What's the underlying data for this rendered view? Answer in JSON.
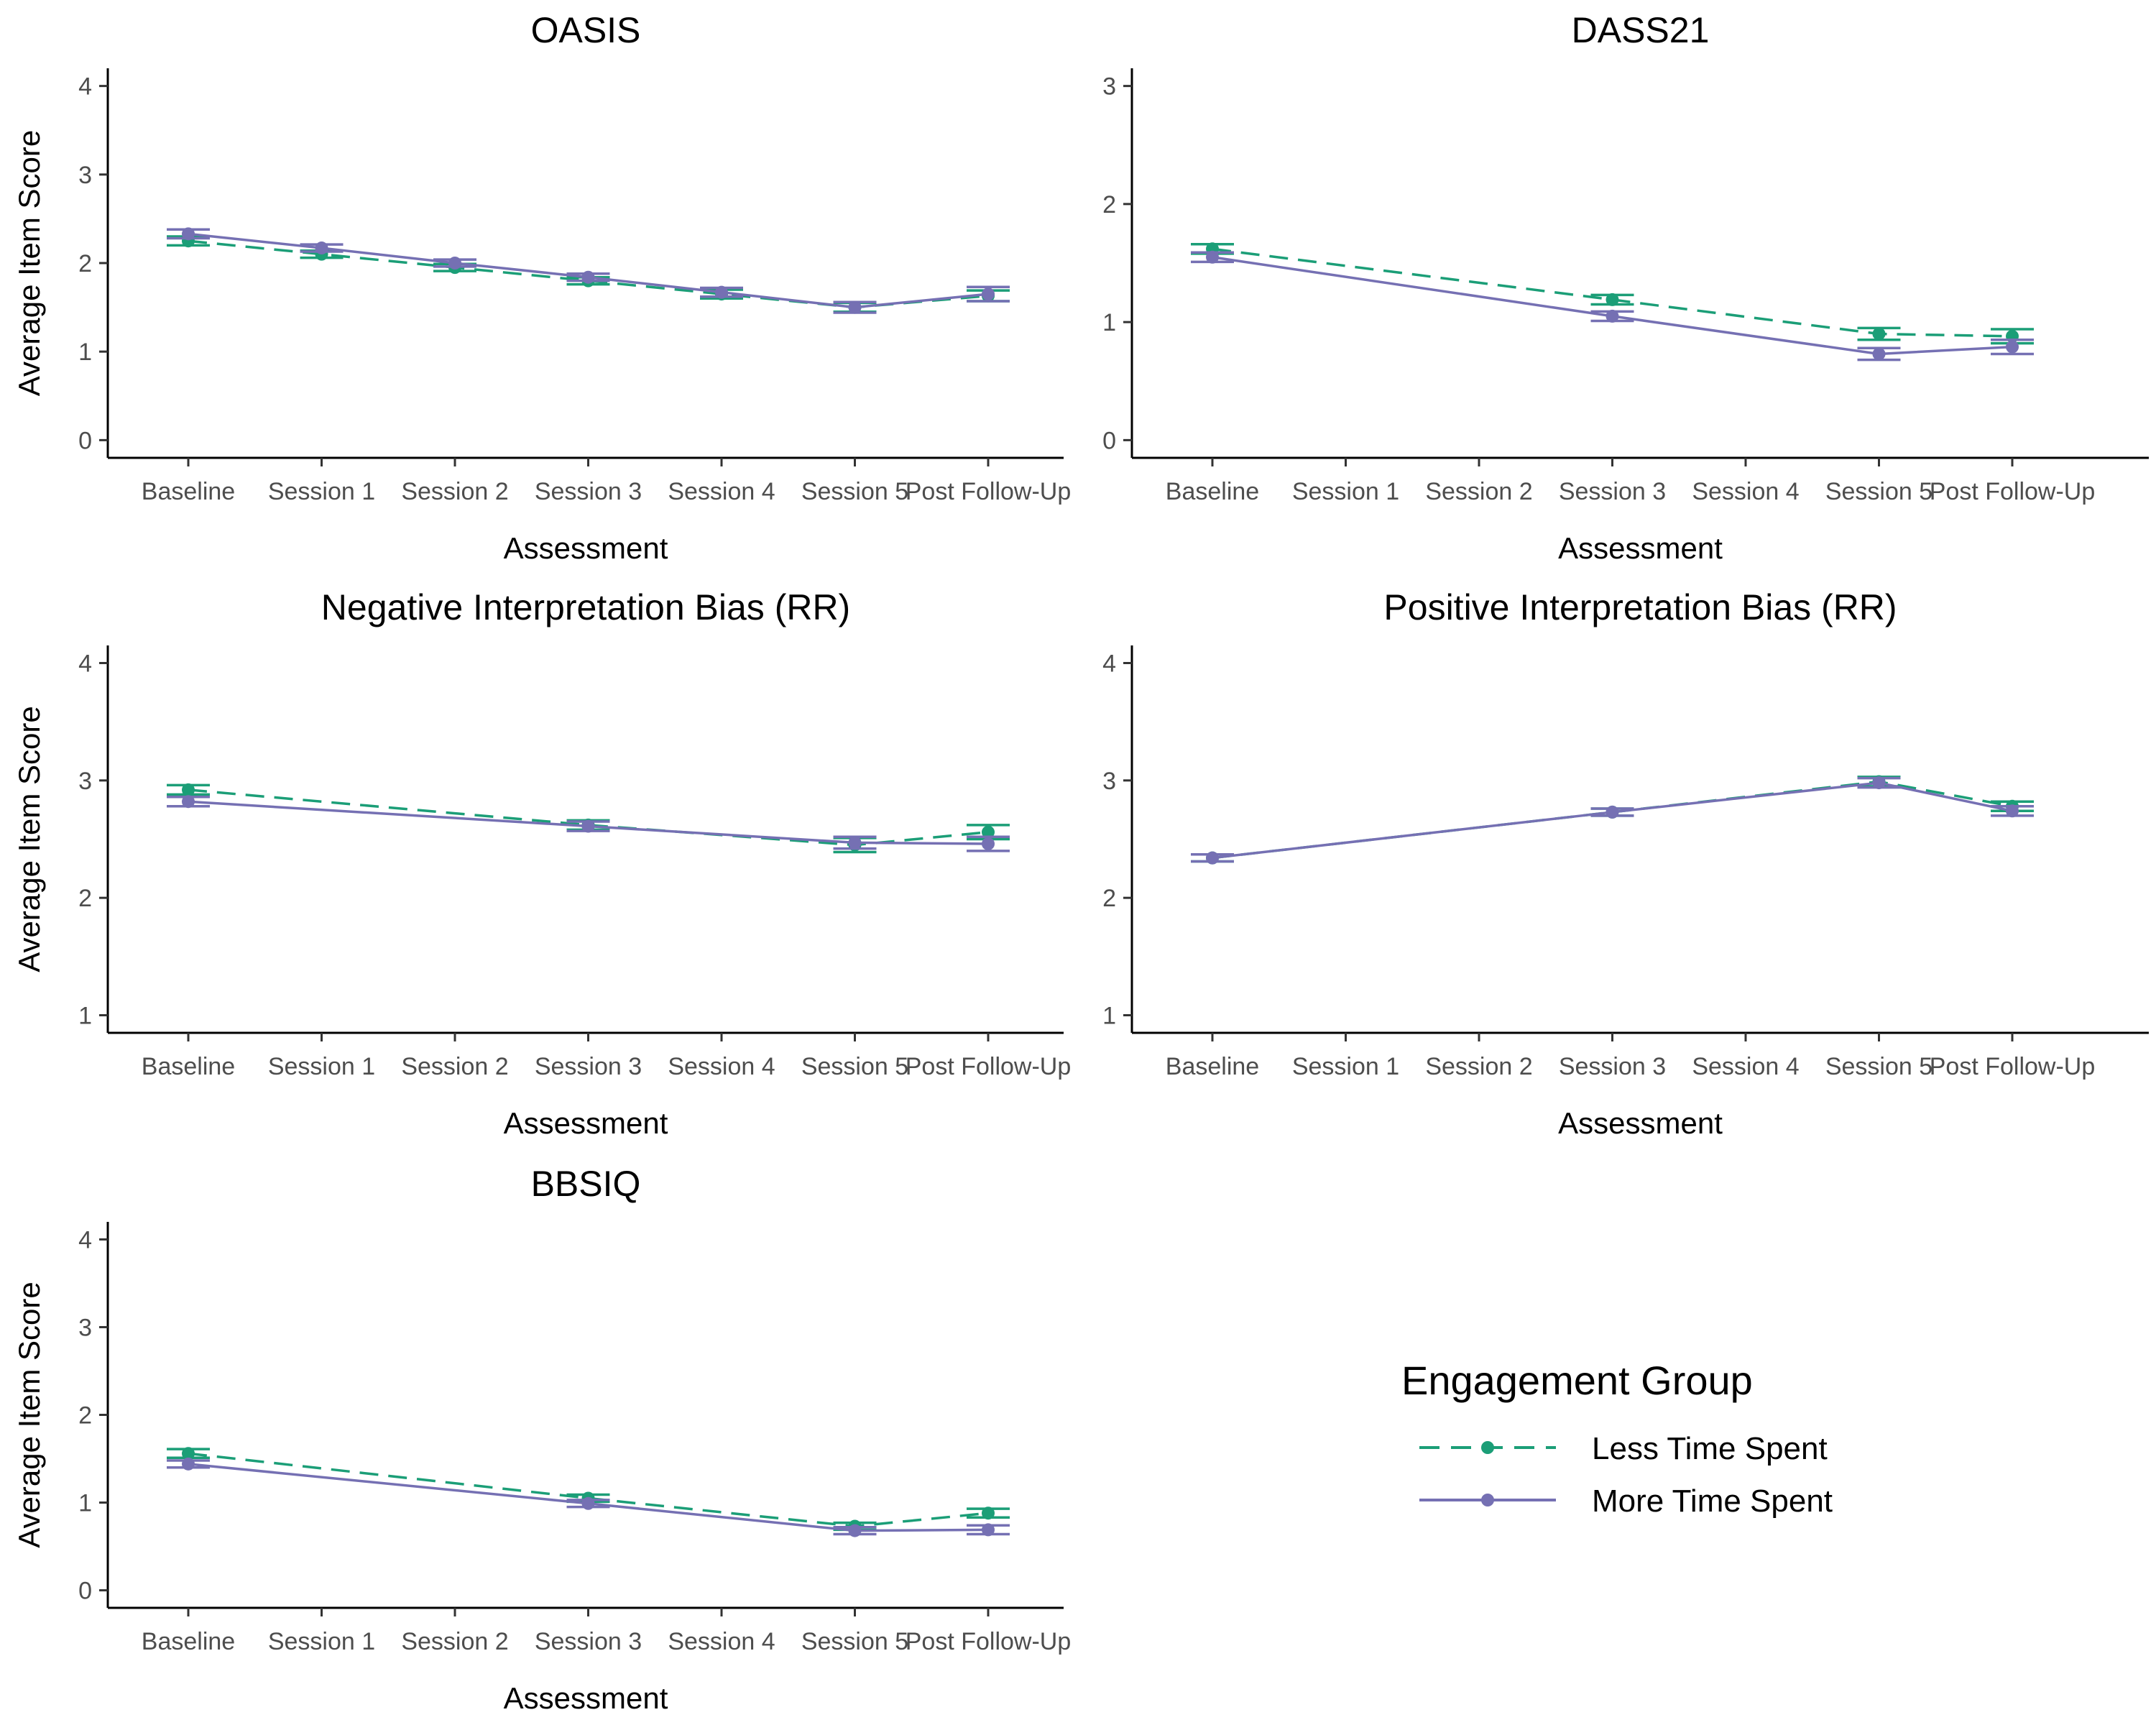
{
  "chart_data": [
    {
      "type": "line",
      "title": "OASIS",
      "xlabel": "Assessment",
      "ylabel": "Average Item Score",
      "categories": [
        "Baseline",
        "Session 1",
        "Session 2",
        "Session 3",
        "Session 4",
        "Session 5",
        "Post Follow-Up"
      ],
      "ylim": [
        -0.2,
        4.2
      ],
      "yticks": [
        0,
        1,
        2,
        3,
        4
      ],
      "series": [
        {
          "name": "Less Time Spent",
          "values": [
            2.25,
            2.1,
            1.95,
            1.8,
            1.65,
            1.5,
            1.63
          ],
          "error": [
            0.05,
            0.04,
            0.04,
            0.04,
            0.05,
            0.05,
            0.06
          ]
        },
        {
          "name": "More Time Spent",
          "values": [
            2.33,
            2.17,
            2.0,
            1.84,
            1.67,
            1.5,
            1.65
          ],
          "error": [
            0.05,
            0.04,
            0.04,
            0.04,
            0.05,
            0.06,
            0.08
          ]
        }
      ]
    },
    {
      "type": "line",
      "title": "DASS21",
      "xlabel": "Assessment",
      "ylabel": "",
      "categories": [
        "Baseline",
        "Session 1",
        "Session 2",
        "Session 3",
        "Session 4",
        "Session 5",
        "Post Follow-Up"
      ],
      "ylim": [
        -0.15,
        3.15
      ],
      "yticks": [
        0,
        1,
        2,
        3
      ],
      "series": [
        {
          "name": "Less Time Spent",
          "values": [
            1.62,
            null,
            null,
            1.19,
            null,
            0.9,
            0.88
          ],
          "error": [
            0.04,
            null,
            null,
            0.04,
            null,
            0.05,
            0.06
          ]
        },
        {
          "name": "More Time Spent",
          "values": [
            1.55,
            null,
            null,
            1.05,
            null,
            0.73,
            0.79
          ],
          "error": [
            0.04,
            null,
            null,
            0.04,
            null,
            0.05,
            0.06
          ]
        }
      ]
    },
    {
      "type": "line",
      "title": "Negative Interpretation Bias (RR)",
      "xlabel": "Assessment",
      "ylabel": "Average Item Score",
      "categories": [
        "Baseline",
        "Session 1",
        "Session 2",
        "Session 3",
        "Session 4",
        "Session 5",
        "Post Follow-Up"
      ],
      "ylim": [
        0.85,
        4.15
      ],
      "yticks": [
        1,
        2,
        3,
        4
      ],
      "series": [
        {
          "name": "Less Time Spent",
          "values": [
            2.92,
            null,
            null,
            2.62,
            null,
            2.45,
            2.56
          ],
          "error": [
            0.04,
            null,
            null,
            0.04,
            null,
            0.06,
            0.06
          ]
        },
        {
          "name": "More Time Spent",
          "values": [
            2.82,
            null,
            null,
            2.61,
            null,
            2.47,
            2.46
          ],
          "error": [
            0.04,
            null,
            null,
            0.04,
            null,
            0.05,
            0.06
          ]
        }
      ]
    },
    {
      "type": "line",
      "title": "Positive Interpretation Bias (RR)",
      "xlabel": "Assessment",
      "ylabel": "",
      "categories": [
        "Baseline",
        "Session 1",
        "Session 2",
        "Session 3",
        "Session 4",
        "Session 5",
        "Post Follow-Up"
      ],
      "ylim": [
        0.85,
        4.15
      ],
      "yticks": [
        1,
        2,
        3,
        4
      ],
      "series": [
        {
          "name": "Less Time Spent",
          "values": [
            2.34,
            null,
            null,
            2.73,
            null,
            2.99,
            2.78
          ],
          "error": [
            0.03,
            null,
            null,
            0.03,
            null,
            0.04,
            0.04
          ]
        },
        {
          "name": "More Time Spent",
          "values": [
            2.34,
            null,
            null,
            2.73,
            null,
            2.98,
            2.74
          ],
          "error": [
            0.03,
            null,
            null,
            0.03,
            null,
            0.04,
            0.04
          ]
        }
      ]
    },
    {
      "type": "line",
      "title": "BBSIQ",
      "xlabel": "Assessment",
      "ylabel": "Average Item Score",
      "categories": [
        "Baseline",
        "Session 1",
        "Session 2",
        "Session 3",
        "Session 4",
        "Session 5",
        "Post Follow-Up"
      ],
      "ylim": [
        -0.2,
        4.2
      ],
      "yticks": [
        0,
        1,
        2,
        3,
        4
      ],
      "series": [
        {
          "name": "Less Time Spent",
          "values": [
            1.56,
            null,
            null,
            1.05,
            null,
            0.73,
            0.88
          ],
          "error": [
            0.05,
            null,
            null,
            0.04,
            null,
            0.04,
            0.05
          ]
        },
        {
          "name": "More Time Spent",
          "values": [
            1.44,
            null,
            null,
            0.99,
            null,
            0.68,
            0.69
          ],
          "error": [
            0.04,
            null,
            null,
            0.04,
            null,
            0.04,
            0.05
          ]
        }
      ]
    }
  ],
  "legend": {
    "title": "Engagement Group",
    "items": [
      "Less Time Spent",
      "More Time Spent"
    ]
  },
  "colors": {
    "Less Time Spent": "#1b9e77",
    "More Time Spent": "#7570b3"
  },
  "line_styles": {
    "Less Time Spent": "dashed",
    "More Time Spent": "solid"
  }
}
